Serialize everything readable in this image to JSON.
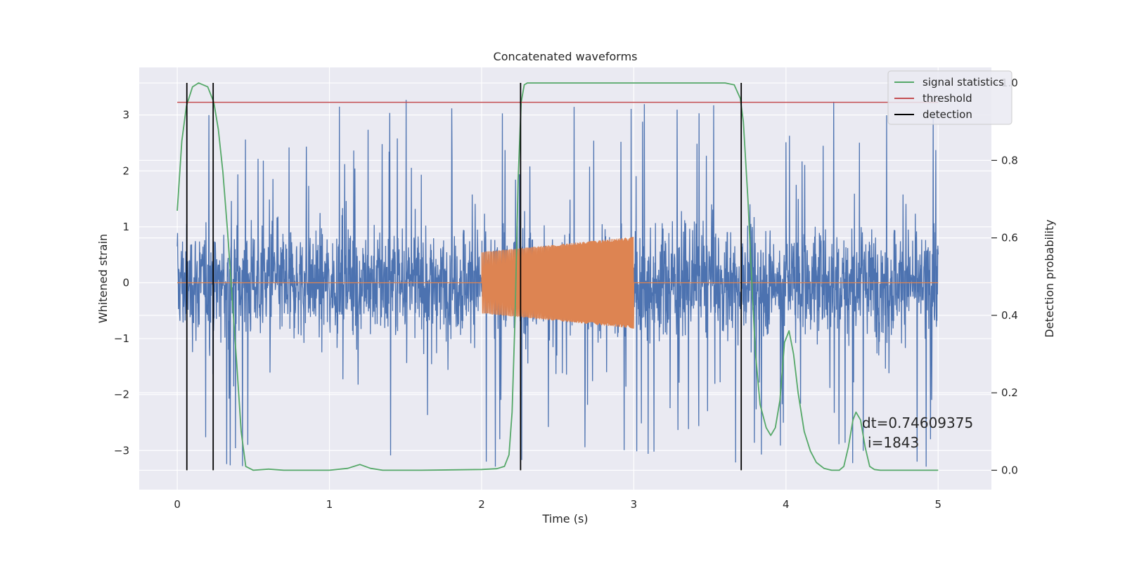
{
  "chart_data": {
    "type": "line",
    "title": "Concatenated waveforms",
    "xlabel": "Time (s)",
    "ylabel": "Whitened strain",
    "y2label": "Detection probability",
    "xlim": [
      -0.25,
      5.35
    ],
    "ylim": [
      -3.7,
      3.85
    ],
    "y2lim": [
      -0.05,
      1.04
    ],
    "xticks": [
      0,
      1,
      2,
      3,
      4,
      5
    ],
    "yticks": [
      -3,
      -2,
      -1,
      0,
      1,
      2,
      3
    ],
    "y2ticks": [
      0.0,
      0.2,
      0.4,
      0.6,
      0.8,
      1.0
    ],
    "yticklabels": [
      "−3",
      "−2",
      "−1",
      "0",
      "1",
      "2",
      "3"
    ],
    "y2ticklabels": [
      "0.0",
      "0.2",
      "0.4",
      "0.6",
      "0.8",
      "1.0"
    ],
    "grid": true,
    "legend_position": "top-right",
    "series": [
      {
        "role": "noise",
        "color": "#4c72b0",
        "x_range": [
          0,
          5
        ],
        "typical_amplitude": 0.75,
        "peak_max": 3.5,
        "peak_min": -3.4
      },
      {
        "role": "injected-chirp",
        "color": "#dd8452",
        "x_range": [
          2,
          3
        ],
        "amplitude_start": 0.55,
        "amplitude_end": 0.82,
        "elsewhere": 0
      },
      {
        "name": "signal statistics",
        "color": "#55a868",
        "axis": "right",
        "x": [
          0,
          0.03,
          0.06,
          0.1,
          0.14,
          0.2,
          0.24,
          0.27,
          0.3,
          0.33,
          0.36,
          0.39,
          0.42,
          0.45,
          0.5,
          0.6,
          0.7,
          1.0,
          1.12,
          1.2,
          1.27,
          1.35,
          1.6,
          2.0,
          2.1,
          2.15,
          2.18,
          2.2,
          2.22,
          2.24,
          2.26,
          2.28,
          2.3,
          2.4,
          3.0,
          3.6,
          3.66,
          3.7,
          3.72,
          3.75,
          3.78,
          3.8,
          3.83,
          3.87,
          3.9,
          3.93,
          3.96,
          3.99,
          4.02,
          4.05,
          4.08,
          4.12,
          4.16,
          4.2,
          4.25,
          4.3,
          4.35,
          4.38,
          4.41,
          4.44,
          4.46,
          4.49,
          4.52,
          4.55,
          4.58,
          4.62,
          4.7,
          5.0
        ],
        "values": [
          0.67,
          0.85,
          0.94,
          0.99,
          1.0,
          0.99,
          0.95,
          0.88,
          0.77,
          0.62,
          0.45,
          0.28,
          0.1,
          0.01,
          0.0,
          0.003,
          0.0,
          0.0,
          0.005,
          0.015,
          0.005,
          0.0,
          0.0,
          0.002,
          0.004,
          0.01,
          0.04,
          0.15,
          0.4,
          0.75,
          0.95,
          0.995,
          1.0,
          1.0,
          1.0,
          1.0,
          0.995,
          0.96,
          0.9,
          0.7,
          0.45,
          0.3,
          0.17,
          0.11,
          0.09,
          0.11,
          0.18,
          0.33,
          0.36,
          0.3,
          0.2,
          0.1,
          0.05,
          0.02,
          0.005,
          0.0,
          0.0,
          0.01,
          0.06,
          0.13,
          0.15,
          0.13,
          0.06,
          0.01,
          0.002,
          0.0,
          0.0,
          0.0
        ]
      },
      {
        "name": "threshold",
        "color": "#c44e52",
        "axis": "right",
        "x": [
          0,
          5
        ],
        "values": [
          0.95,
          0.95
        ]
      },
      {
        "name": "detection",
        "color": "#000000",
        "axis": "right",
        "type": "vlines",
        "x": [
          0.063,
          0.236,
          2.256,
          3.706
        ],
        "ymin": 0.0,
        "ymax": 1.0
      }
    ],
    "annotation": {
      "line1": "dt=0.74609375",
      "line2": "i=1843",
      "x": 4.5,
      "y": 0.11
    },
    "colors": {
      "plot_bg": "#eaeaf2",
      "grid": "#ffffff"
    }
  }
}
